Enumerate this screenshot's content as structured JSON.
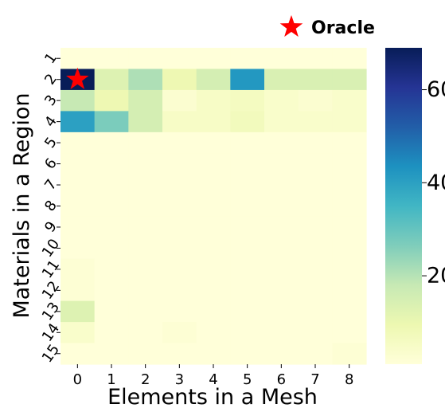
{
  "chart_data": {
    "type": "heatmap",
    "title": "",
    "xlabel": "Elements in a Mesh",
    "ylabel": "Materials in a Region",
    "x_categories": [
      "0",
      "1",
      "2",
      "3",
      "4",
      "5",
      "6",
      "7",
      "8"
    ],
    "y_categories": [
      "1",
      "2",
      "3",
      "4",
      "5",
      "6",
      "7",
      "8",
      "9",
      "10",
      "11",
      "12",
      "13",
      "14",
      "15"
    ],
    "values": [
      [
        1,
        1,
        1,
        1,
        1,
        1,
        1,
        1,
        1
      ],
      [
        69,
        13,
        21,
        9,
        15,
        42,
        14,
        14,
        14
      ],
      [
        18,
        9,
        15,
        3,
        5,
        6,
        4,
        3,
        4
      ],
      [
        40,
        27,
        15,
        5,
        5,
        7,
        4,
        4,
        4
      ],
      [
        1,
        1,
        1,
        1,
        1,
        1,
        1,
        1,
        1
      ],
      [
        1,
        1,
        1,
        1,
        1,
        1,
        1,
        1,
        1
      ],
      [
        1,
        1,
        1,
        1,
        1,
        1,
        1,
        1,
        1
      ],
      [
        1,
        1,
        1,
        1,
        1,
        1,
        1,
        1,
        1
      ],
      [
        1,
        1,
        1,
        1,
        1,
        1,
        1,
        1,
        1
      ],
      [
        1,
        1,
        1,
        1,
        1,
        1,
        1,
        1,
        1
      ],
      [
        2,
        1,
        1,
        1,
        1,
        1,
        1,
        1,
        1
      ],
      [
        2,
        1,
        1,
        1,
        1,
        1,
        1,
        1,
        1
      ],
      [
        13,
        1,
        1,
        1,
        1,
        1,
        1,
        1,
        1
      ],
      [
        4,
        1,
        1,
        2,
        1,
        1,
        1,
        1,
        1
      ],
      [
        1,
        1,
        1,
        1,
        1,
        1,
        1,
        1,
        2
      ]
    ],
    "colormap": "YlGnBu",
    "colorbar": {
      "min": 1,
      "max": 69,
      "ticks": [
        20,
        40,
        60
      ],
      "tick_labels": [
        "20",
        "40",
        "60"
      ]
    },
    "legend": {
      "label": "Oracle",
      "marker": "star",
      "color": "#ff0000",
      "placement": "top-right"
    },
    "marker": {
      "row": "2",
      "col": "0",
      "label": "Oracle"
    }
  }
}
